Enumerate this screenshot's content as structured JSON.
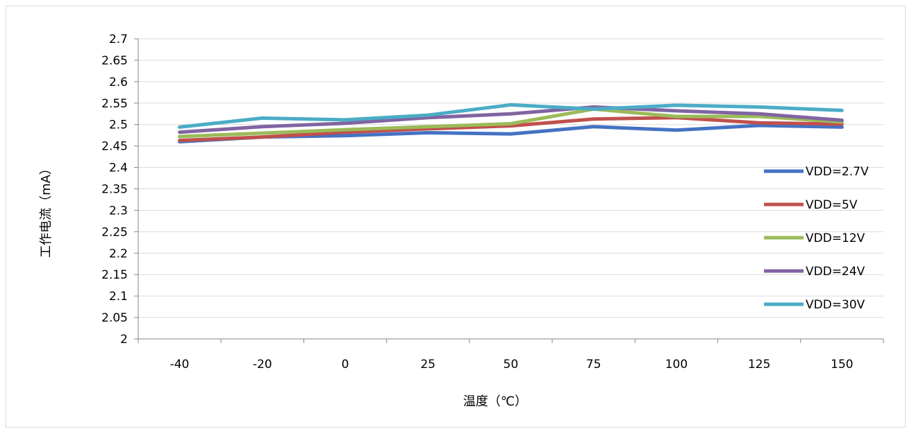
{
  "chart_data": {
    "type": "line",
    "xlabel": "温度（℃）",
    "ylabel": "工作电流（mA）",
    "categories": [
      "-40",
      "-20",
      "0",
      "25",
      "50",
      "75",
      "100",
      "125",
      "150"
    ],
    "y_ticks": [
      "2",
      "2.05",
      "2.1",
      "2.15",
      "2.2",
      "2.25",
      "2.3",
      "2.35",
      "2.4",
      "2.45",
      "2.5",
      "2.55",
      "2.6",
      "2.65",
      "2.7"
    ],
    "ylim": [
      2,
      2.7
    ],
    "grid": "horizontal",
    "legend": "right",
    "series": [
      {
        "name": "VDD=2.7V",
        "color": "#4472C4",
        "values": [
          2.46,
          2.471,
          2.474,
          2.481,
          2.478,
          2.495,
          2.487,
          2.498,
          2.494
        ]
      },
      {
        "name": "VDD=5V",
        "color": "#C0504D",
        "values": [
          2.463,
          2.471,
          2.482,
          2.49,
          2.497,
          2.513,
          2.516,
          2.504,
          2.501
        ]
      },
      {
        "name": "VDD=12V",
        "color": "#9BBB59",
        "values": [
          2.472,
          2.48,
          2.488,
          2.495,
          2.502,
          2.536,
          2.519,
          2.519,
          2.506
        ]
      },
      {
        "name": "VDD=24V",
        "color": "#8064A2",
        "values": [
          2.482,
          2.495,
          2.503,
          2.516,
          2.525,
          2.541,
          2.532,
          2.525,
          2.51
        ]
      },
      {
        "name": "VDD=30V",
        "color": "#4BACC6",
        "values": [
          2.494,
          2.515,
          2.511,
          2.522,
          2.546,
          2.536,
          2.545,
          2.541,
          2.533
        ]
      }
    ]
  }
}
